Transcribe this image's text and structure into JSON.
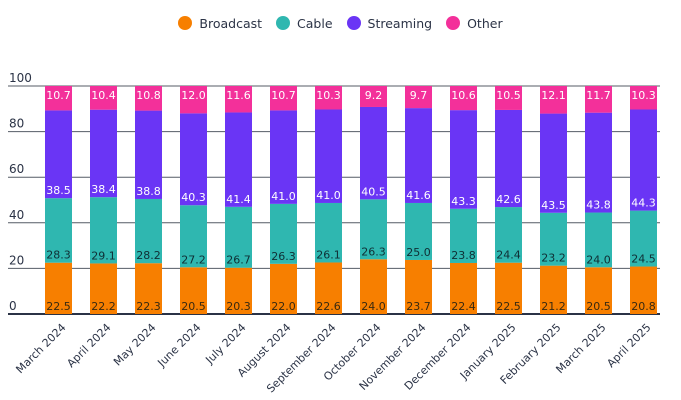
{
  "chart_data": {
    "type": "bar",
    "stacked": true,
    "title": "",
    "xlabel": "",
    "ylabel": "%",
    "ylim": [
      0,
      100
    ],
    "yticks": [
      0,
      20,
      40,
      60,
      80,
      100
    ],
    "grid": true,
    "legend_position": "top-center",
    "categories": [
      "March 2024",
      "April 2024",
      "May 2024",
      "June 2024",
      "July 2024",
      "August 2024",
      "September 2024",
      "October 2024",
      "November 2024",
      "December 2024",
      "January 2025",
      "February 2025",
      "March 2025",
      "April 2025"
    ],
    "series": [
      {
        "name": "Broadcast",
        "color": "#f77f00",
        "label_color": "#3a2a10",
        "values": [
          22.5,
          22.2,
          22.3,
          20.5,
          20.3,
          22.0,
          22.6,
          24.0,
          23.7,
          22.4,
          22.5,
          21.2,
          20.5,
          20.8
        ]
      },
      {
        "name": "Cable",
        "color": "#2fb7b0",
        "label_color": "#0f2f35",
        "values": [
          28.3,
          29.1,
          28.2,
          27.2,
          26.7,
          26.3,
          26.1,
          26.3,
          25.0,
          23.8,
          24.4,
          23.2,
          24.0,
          24.5
        ]
      },
      {
        "name": "Streaming",
        "color": "#6a35f5",
        "label_color": "#ffffff",
        "values": [
          38.5,
          38.4,
          38.8,
          40.3,
          41.4,
          41.0,
          41.0,
          40.5,
          41.6,
          43.3,
          42.6,
          43.5,
          43.8,
          44.3
        ]
      },
      {
        "name": "Other",
        "color": "#f3309a",
        "label_color": "#ffffff",
        "values": [
          10.7,
          10.4,
          10.8,
          12.0,
          11.6,
          10.7,
          10.3,
          9.2,
          9.7,
          10.6,
          10.5,
          12.1,
          11.7,
          10.3
        ]
      }
    ]
  }
}
